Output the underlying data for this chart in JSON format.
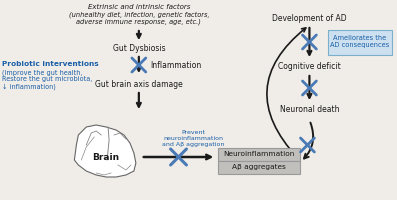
{
  "bg_color": "#f0ede8",
  "text_color_black": "#1a1a1a",
  "text_color_blue": "#1a5fa8",
  "arrow_color": "#1a1a1a",
  "cross_color": "#4a7ab5",
  "box_fill": "#c0bfbc",
  "box_edge": "#999999",
  "amel_fill": "#cce0ef",
  "amel_edge": "#7ab0cc",
  "extrinsic_line1": "Extrinsic and intrinsic factors",
  "extrinsic_line2": "(unhealthy diet, infection, genetic factors,",
  "extrinsic_line3": "adverse immune response, age, etc.)",
  "gut_dysbiosis": "Gut Dysbiosis",
  "probiotic_title": "Probiotic interventions",
  "probiotic_desc": "(Improve the gut health,\nRestore the gut microbiota,\n↓ inflammation)",
  "inflammation": "Inflammation",
  "gut_brain_axis": "Gut brain axis damage",
  "brain_label": "Brain",
  "prevent_text": "Prevent\nneuroinflammation\nand Aβ aggregation",
  "neuro_box": "Neuroinflammation",
  "ab_box": "Aβ aggregates",
  "dev_ad": "Development of AD",
  "ameliorates": "Ameliorates the\nAD consequences",
  "cognitive": "Cognitive deficit",
  "neuronal": "Neuronal death"
}
